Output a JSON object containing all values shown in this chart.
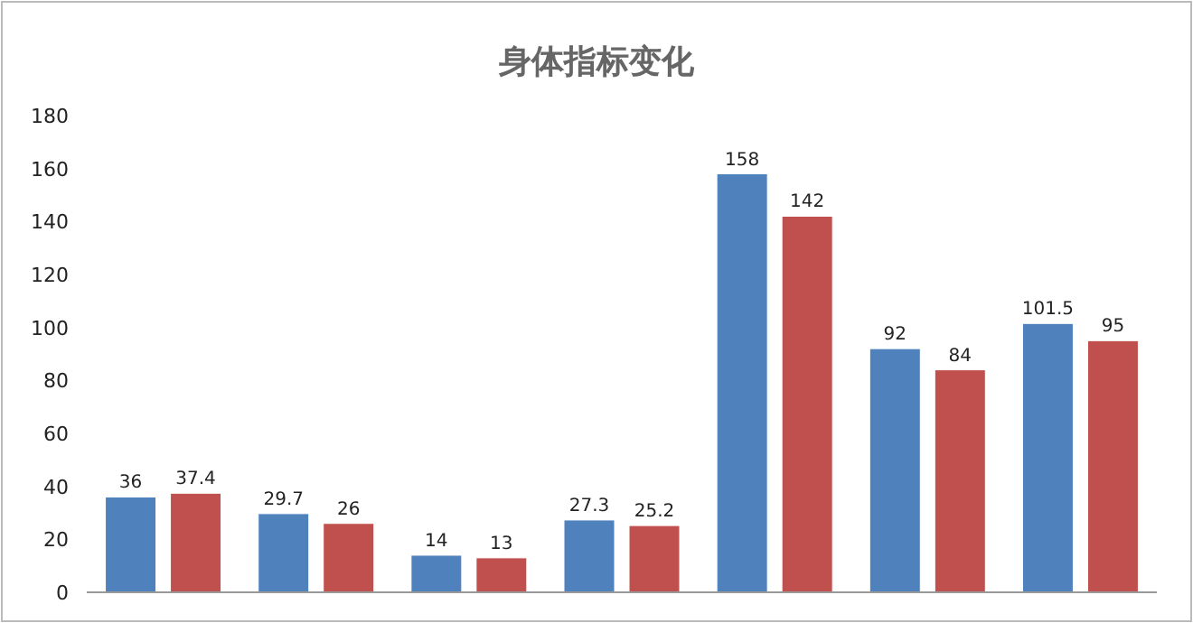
{
  "chart_data": {
    "type": "bar",
    "title": "身体指标变化",
    "categories": [
      null,
      null,
      null,
      null,
      null,
      null,
      null
    ],
    "series": [
      {
        "color": "#4f81bd",
        "values": [
          36,
          29.7,
          14,
          27.3,
          158,
          92,
          101.5
        ]
      },
      {
        "color": "#c0504d",
        "values": [
          37.4,
          26,
          13,
          25.2,
          142,
          84,
          95
        ]
      }
    ],
    "ylim": [
      0,
      180
    ],
    "yticks": [
      0,
      20,
      40,
      60,
      80,
      100,
      120,
      140,
      160,
      180
    ],
    "data_labels": true
  }
}
